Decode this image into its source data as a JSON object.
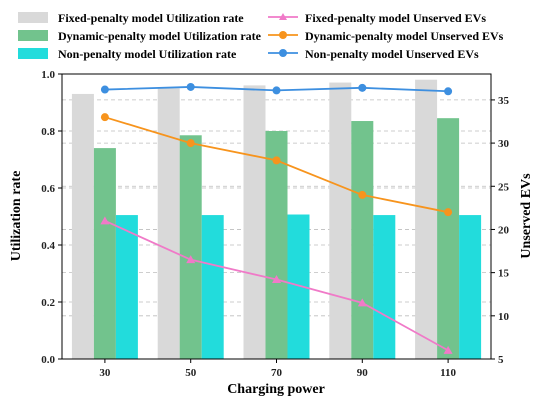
{
  "chart_data": {
    "type": "bar+line",
    "categories": [
      "30",
      "50",
      "70",
      "90",
      "110"
    ],
    "xlabel": "Charging  power",
    "ylabel_left": "Utilization  rate",
    "ylabel_right": "Unserved  EVs",
    "ylim_left": [
      0.0,
      1.0
    ],
    "ylim_right": [
      5,
      38
    ],
    "yticks_left": [
      "0.0",
      "0.2",
      "0.4",
      "0.6",
      "0.8",
      "1.0"
    ],
    "yticks_right": [
      "5",
      "10",
      "15",
      "20",
      "25",
      "30",
      "35"
    ],
    "yticks_left_values": [
      0.0,
      0.2,
      0.4,
      0.6,
      0.8,
      1.0
    ],
    "yticks_right_values": [
      5,
      10,
      15,
      20,
      25,
      30,
      35
    ],
    "grid": "horizontal dashed",
    "legend_placement": "top, outside plot",
    "bar_series": [
      {
        "name": "Fixed-penalty model Utilization rate",
        "color": "#d9d9d9",
        "values": [
          0.93,
          0.95,
          0.96,
          0.97,
          0.98
        ]
      },
      {
        "name": "Dynamic-penalty model Utilization rate",
        "color": "#72c38d",
        "values": [
          0.74,
          0.785,
          0.8,
          0.835,
          0.845
        ]
      },
      {
        "name": "Non-penalty model Utilization rate",
        "color": "#22dcdc",
        "values": [
          0.505,
          0.505,
          0.507,
          0.505,
          0.505
        ]
      }
    ],
    "line_series": [
      {
        "name": "Fixed-penalty model Unserved EVs",
        "color": "#f07ac8",
        "marker": "triangle",
        "values": [
          21,
          16.5,
          14.2,
          11.5,
          6
        ]
      },
      {
        "name": "Dynamic-penalty model Unserved EVs",
        "color": "#f7941d",
        "marker": "circle",
        "values": [
          33,
          30,
          28,
          24,
          22
        ]
      },
      {
        "name": "Non-penalty model Unserved EVs",
        "color": "#3d8fe0",
        "marker": "circle",
        "values": [
          36.2,
          36.5,
          36.1,
          36.4,
          36
        ]
      }
    ]
  }
}
